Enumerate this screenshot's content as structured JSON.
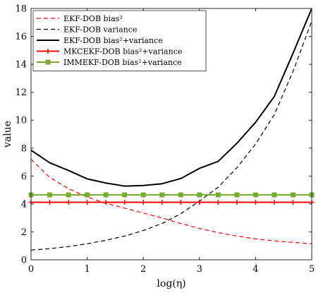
{
  "chart_data": {
    "type": "line",
    "xlabel": "log(η)",
    "ylabel": "value",
    "xlim": [
      0,
      5
    ],
    "ylim": [
      0,
      18
    ],
    "xticks": [
      0,
      1,
      2,
      3,
      4,
      5
    ],
    "yticks": [
      0,
      2,
      4,
      6,
      8,
      10,
      12,
      14,
      16,
      18
    ],
    "grid": false,
    "legend_position": "top-left",
    "series": [
      {
        "name": "EKF-DOB bias²",
        "color": "#ff0000",
        "style": "dashed",
        "marker": "none",
        "x": [
          0,
          0.333,
          0.667,
          1.0,
          1.333,
          1.667,
          2.0,
          2.333,
          2.667,
          3.0,
          3.333,
          3.667,
          4.0,
          4.333,
          4.667,
          5.0
        ],
        "y": [
          7.2,
          5.9,
          5.1,
          4.5,
          4.05,
          3.7,
          3.35,
          3.0,
          2.6,
          2.25,
          1.95,
          1.7,
          1.5,
          1.35,
          1.25,
          1.15
        ]
      },
      {
        "name": "EKF-DOB variance",
        "color": "#000000",
        "style": "dashed",
        "marker": "none",
        "x": [
          0,
          0.333,
          0.667,
          1.0,
          1.333,
          1.667,
          2.0,
          2.333,
          2.667,
          3.0,
          3.333,
          3.667,
          4.0,
          4.333,
          4.667,
          5.0
        ],
        "y": [
          0.7,
          0.8,
          0.95,
          1.15,
          1.4,
          1.7,
          2.1,
          2.6,
          3.3,
          4.2,
          5.2,
          6.6,
          8.3,
          10.4,
          13.5,
          17.1
        ]
      },
      {
        "name": "EKF-DOB bias²+variance",
        "color": "#000000",
        "style": "solid",
        "marker": "none",
        "x": [
          0,
          0.333,
          0.667,
          1.0,
          1.333,
          1.667,
          2.0,
          2.333,
          2.667,
          3.0,
          3.333,
          3.667,
          4.0,
          4.333,
          4.667,
          5.0
        ],
        "y": [
          7.85,
          6.95,
          6.4,
          5.8,
          5.5,
          5.28,
          5.32,
          5.45,
          5.82,
          6.55,
          7.05,
          8.35,
          9.85,
          11.7,
          14.8,
          18.0
        ]
      },
      {
        "name": "MKCEKF-DOB bias²+variance",
        "color": "#ff0000",
        "style": "solid",
        "marker": "plus",
        "x": [
          0,
          0.333,
          0.667,
          1.0,
          1.333,
          1.667,
          2.0,
          2.333,
          2.667,
          3.0,
          3.333,
          3.667,
          4.0,
          4.333,
          4.667,
          5.0
        ],
        "y": [
          4.12,
          4.12,
          4.12,
          4.12,
          4.12,
          4.12,
          4.12,
          4.12,
          4.12,
          4.12,
          4.12,
          4.12,
          4.12,
          4.12,
          4.12,
          4.12
        ]
      },
      {
        "name": "IMMEKF-DOB bias²+variance",
        "color": "#77ac30",
        "style": "solid",
        "marker": "square",
        "x": [
          0,
          0.333,
          0.667,
          1.0,
          1.333,
          1.667,
          2.0,
          2.333,
          2.667,
          3.0,
          3.333,
          3.667,
          4.0,
          4.333,
          4.667,
          5.0
        ],
        "y": [
          4.65,
          4.65,
          4.65,
          4.65,
          4.65,
          4.65,
          4.65,
          4.65,
          4.65,
          4.65,
          4.65,
          4.65,
          4.65,
          4.65,
          4.65,
          4.65
        ]
      }
    ]
  }
}
